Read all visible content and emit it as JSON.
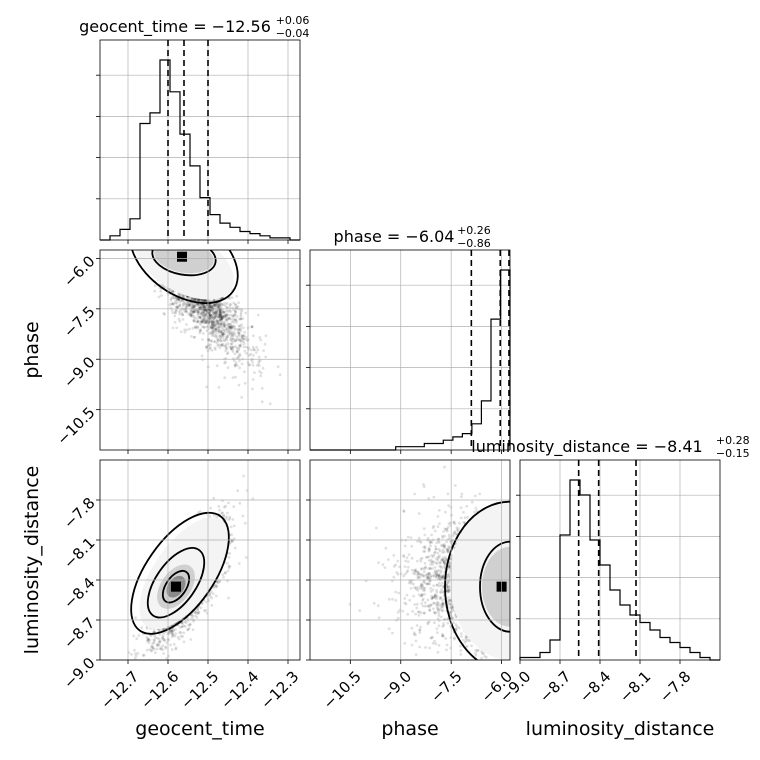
{
  "chart_data": {
    "type": "corner",
    "parameters": [
      "geocent_time",
      "phase",
      "luminosity_distance"
    ],
    "axis_labels": [
      "geocent_time",
      "phase",
      "luminosity_distance"
    ],
    "ranges": [
      [
        -12.77,
        -12.27
      ],
      [
        -11.7,
        -5.75
      ],
      [
        -9.0,
        -7.5
      ]
    ],
    "ticks": [
      [
        "−12.7",
        "−12.6",
        "−12.5",
        "−12.4",
        "−12.3"
      ],
      [
        "−10.5",
        "−9.0",
        "−7.5",
        "−6.0"
      ],
      [
        "−9.0",
        "−8.7",
        "−8.4",
        "−8.1",
        "−7.8"
      ]
    ],
    "tick_values": [
      [
        -12.7,
        -12.6,
        -12.5,
        -12.4,
        -12.3
      ],
      [
        -10.5,
        -9.0,
        -7.5,
        -6.0
      ],
      [
        -9.0,
        -8.7,
        -8.4,
        -8.1,
        -7.8
      ]
    ],
    "titles": [
      {
        "text": "geocent_time = −12.56",
        "plus": "+0.06",
        "minus": "−0.04"
      },
      {
        "text": "phase = −6.04",
        "plus": "+0.26",
        "minus": "−0.86"
      },
      {
        "text": "luminosity_distance = −8.41",
        "plus": "+0.28",
        "minus": "−0.15"
      }
    ],
    "quantiles": [
      [
        -12.6,
        -12.56,
        -12.5
      ],
      [
        -6.9,
        -6.04,
        -5.78
      ],
      [
        -8.56,
        -8.41,
        -8.13
      ]
    ],
    "histograms": [
      {
        "edges_range": [
          -12.77,
          -12.27
        ],
        "counts": [
          0,
          2,
          5,
          10,
          55,
          60,
          85,
          70,
          50,
          35,
          20,
          12,
          8,
          6,
          4,
          3,
          2,
          1,
          1,
          0
        ]
      },
      {
        "edges_range": [
          -11.7,
          -5.75
        ],
        "counts": [
          0,
          0,
          0,
          0,
          0,
          0,
          0,
          0,
          0,
          1,
          1,
          1,
          2,
          2,
          3,
          4,
          5,
          8,
          15,
          40,
          55
        ]
      },
      {
        "edges_range": [
          -9.0,
          -7.5
        ],
        "counts": [
          1,
          1,
          3,
          8,
          50,
          72,
          66,
          48,
          38,
          28,
          22,
          18,
          15,
          12,
          9,
          7,
          5,
          3,
          1,
          0
        ]
      }
    ],
    "scatter_centers": {
      "phase_vs_geocent_time": {
        "x": -12.56,
        "y": -6.0
      },
      "luminosity_distance_vs_geocent_time": {
        "x": -12.58,
        "y": -8.45
      },
      "luminosity_distance_vs_phase": {
        "x": -6.0,
        "y": -8.45
      }
    },
    "grid": true
  }
}
